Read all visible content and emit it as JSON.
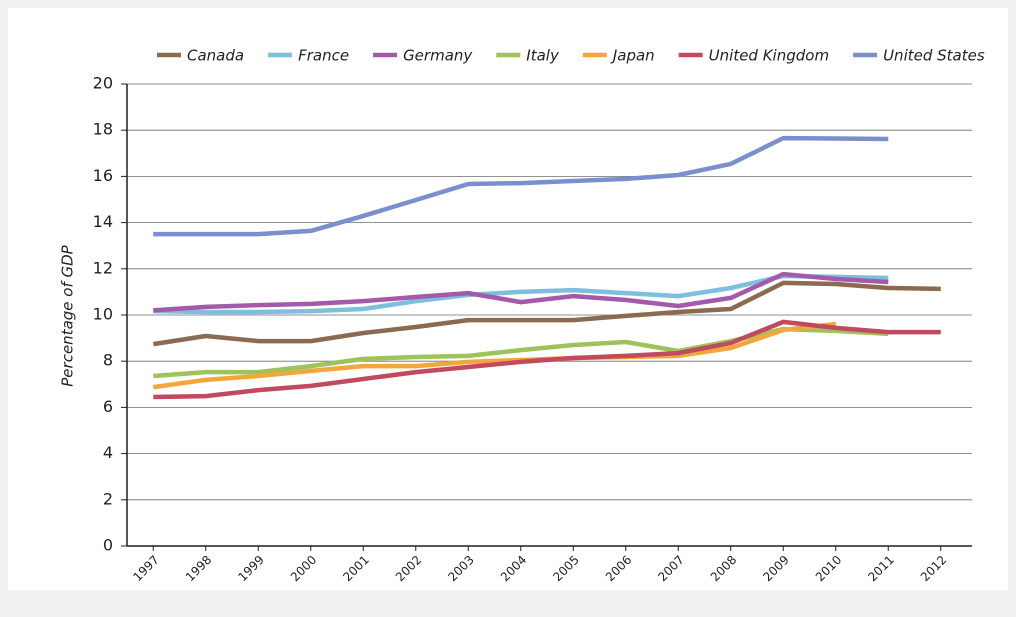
{
  "chart_data": {
    "type": "line",
    "y_label": "Percentage of GDP",
    "categories": [
      "1997",
      "1998",
      "1999",
      "2000",
      "2001",
      "2002",
      "2003",
      "2004",
      "2005",
      "2006",
      "2007",
      "2008",
      "2009",
      "2010",
      "2011",
      "2012"
    ],
    "series": [
      {
        "name": "Canada",
        "color": "#8b6a4f",
        "values": [
          8.74,
          9.09,
          8.87,
          8.87,
          9.22,
          9.48,
          9.78,
          9.78,
          9.78,
          9.96,
          10.13,
          10.26,
          11.39,
          11.34,
          11.17,
          11.13
        ]
      },
      {
        "name": "France",
        "color": "#7dbfdc",
        "values": [
          10.17,
          10.13,
          10.13,
          10.17,
          10.26,
          10.6,
          10.87,
          11.0,
          11.08,
          10.95,
          10.82,
          11.17,
          11.69,
          11.65,
          11.6,
          null
        ]
      },
      {
        "name": "Germany",
        "color": "#a35aab",
        "values": [
          10.2,
          10.35,
          10.43,
          10.48,
          10.6,
          10.78,
          10.95,
          10.56,
          10.82,
          10.65,
          10.39,
          10.74,
          11.77,
          11.56,
          11.43,
          null
        ]
      },
      {
        "name": "Italy",
        "color": "#9dc35a",
        "values": [
          7.36,
          7.53,
          7.53,
          7.79,
          8.1,
          8.18,
          8.23,
          8.48,
          8.7,
          8.83,
          8.44,
          8.87,
          9.39,
          9.31,
          9.18,
          null
        ]
      },
      {
        "name": "Japan",
        "color": "#f3a73b",
        "values": [
          6.88,
          7.19,
          7.36,
          7.58,
          7.79,
          7.79,
          7.97,
          8.05,
          8.14,
          8.18,
          8.23,
          8.57,
          9.35,
          9.61,
          null,
          null
        ]
      },
      {
        "name": "United Kingdom",
        "color": "#c04a5e",
        "values": [
          6.45,
          6.49,
          6.75,
          6.93,
          7.23,
          7.53,
          7.75,
          7.97,
          8.14,
          8.23,
          8.35,
          8.79,
          9.7,
          9.44,
          9.26,
          9.26
        ]
      },
      {
        "name": "United States",
        "color": "#7b8fcf",
        "values": [
          13.5,
          13.5,
          13.5,
          13.64,
          14.29,
          14.98,
          15.67,
          15.71,
          15.8,
          15.89,
          16.06,
          16.54,
          17.66,
          17.64,
          17.62,
          null
        ]
      }
    ],
    "ylim": [
      0,
      20
    ],
    "yticks": [
      0,
      2,
      4,
      6,
      8,
      10,
      12,
      14,
      16,
      18,
      20
    ],
    "grid": true
  }
}
